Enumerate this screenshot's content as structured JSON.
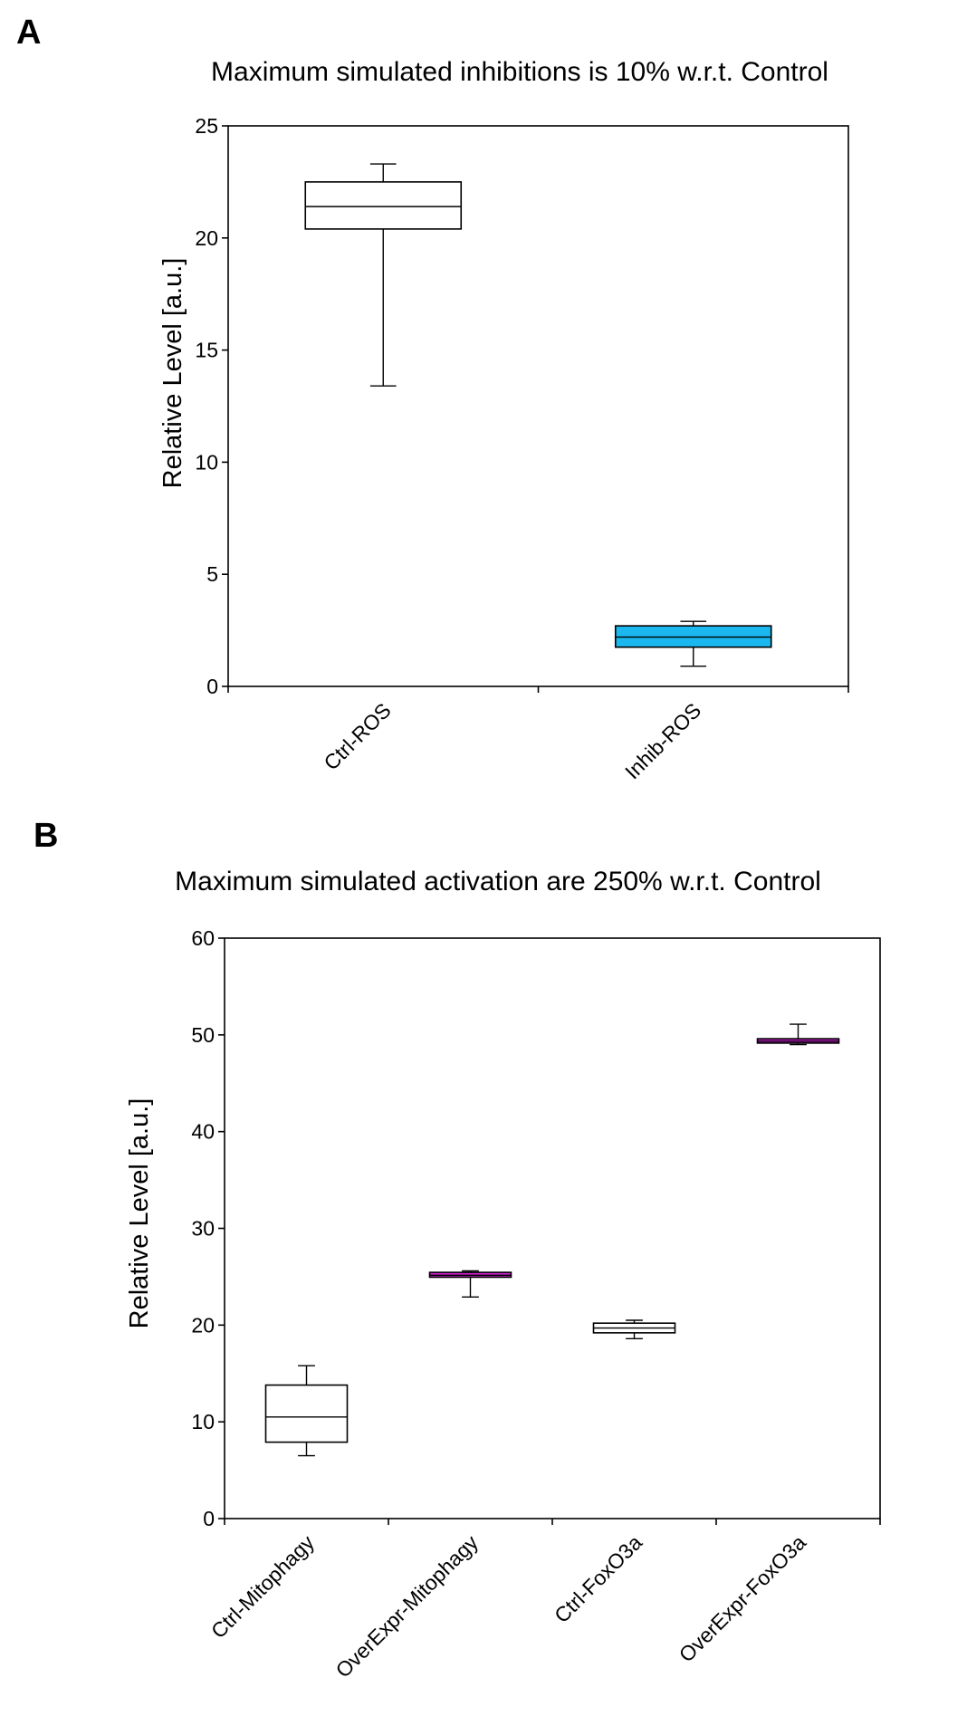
{
  "chart_data": [
    {
      "panel": "A",
      "type": "box",
      "title": "Maximum simulated inhibitions is 10% w.r.t. Control",
      "xlabel": "",
      "ylabel": "Relative Level [a.u.]",
      "ylim": [
        0,
        25
      ],
      "yticks": [
        0,
        5,
        10,
        15,
        20,
        25
      ],
      "categories": [
        "Ctrl-ROS",
        "Inhib-ROS"
      ],
      "boxes": [
        {
          "name": "Ctrl-ROS",
          "min": 13.4,
          "q1": 20.4,
          "median": 21.4,
          "q3": 22.5,
          "max": 23.3,
          "color": "#ffffff"
        },
        {
          "name": "Inhib-ROS",
          "min": 0.9,
          "q1": 1.75,
          "median": 2.2,
          "q3": 2.7,
          "max": 2.9,
          "color": "#1ab8ee"
        }
      ]
    },
    {
      "panel": "B",
      "type": "box",
      "title": "Maximum simulated activation are 250% w.r.t. Control",
      "xlabel": "",
      "ylabel": "Relative Level [a.u.]",
      "ylim": [
        0,
        60
      ],
      "yticks": [
        0,
        10,
        20,
        30,
        40,
        50,
        60
      ],
      "categories": [
        "Ctrl-Mitophagy",
        "OverExpr-Mitophagy",
        "Ctrl-FoxO3a",
        "OverExpr-FoxO3a"
      ],
      "boxes": [
        {
          "name": "Ctrl-Mitophagy",
          "min": 6.5,
          "q1": 7.9,
          "median": 10.5,
          "q3": 13.8,
          "max": 15.8,
          "color": "#ffffff"
        },
        {
          "name": "OverExpr-Mitophagy",
          "min": 22.9,
          "q1": 24.95,
          "median": 25.15,
          "q3": 25.45,
          "max": 25.6,
          "color": "#d11fd6"
        },
        {
          "name": "Ctrl-FoxO3a",
          "min": 18.6,
          "q1": 19.2,
          "median": 19.7,
          "q3": 20.2,
          "max": 20.5,
          "color": "#ffffff"
        },
        {
          "name": "OverExpr-FoxO3a",
          "min": 49.0,
          "q1": 49.15,
          "median": 49.35,
          "q3": 49.6,
          "max": 51.1,
          "color": "#d11fd6"
        }
      ]
    }
  ]
}
